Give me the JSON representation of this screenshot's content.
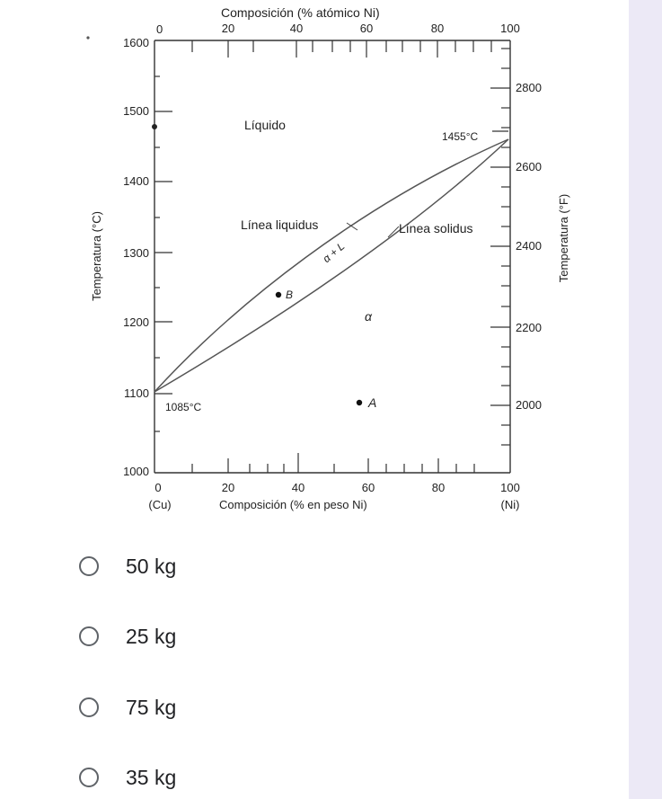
{
  "diagram": {
    "top_axis_title": "Composición (% atómico Ni)",
    "top_ticks": [
      "0",
      "20",
      "40",
      "60",
      "80",
      "100"
    ],
    "bottom_axis_title": "Composición (% en peso Ni)",
    "bottom_ticks": [
      "0",
      "20",
      "40",
      "60",
      "80",
      "100"
    ],
    "bottom_end_left": "(Cu)",
    "bottom_end_right": "(Ni)",
    "left_axis_title": "Temperatura (°C)",
    "left_ticks": [
      "1600",
      "1500",
      "1400",
      "1300",
      "1200",
      "1100",
      "1000"
    ],
    "right_axis_title": "Temperatura (°F)",
    "right_ticks": [
      "2800",
      "2600",
      "2400",
      "2200",
      "2000"
    ],
    "regions": {
      "liquid": "Líquido",
      "alpha": "α",
      "two_phase": "α + L"
    },
    "lines": {
      "liquidus": "Línea liquidus",
      "solidus": "Línea solidus"
    },
    "melting_points": {
      "cu": "1085°C",
      "ni": "1455°C"
    },
    "points": {
      "A": "A",
      "B": "B"
    }
  },
  "options": [
    {
      "label": "50 kg"
    },
    {
      "label": "25 kg"
    },
    {
      "label": "75 kg"
    },
    {
      "label": "35 kg"
    }
  ]
}
